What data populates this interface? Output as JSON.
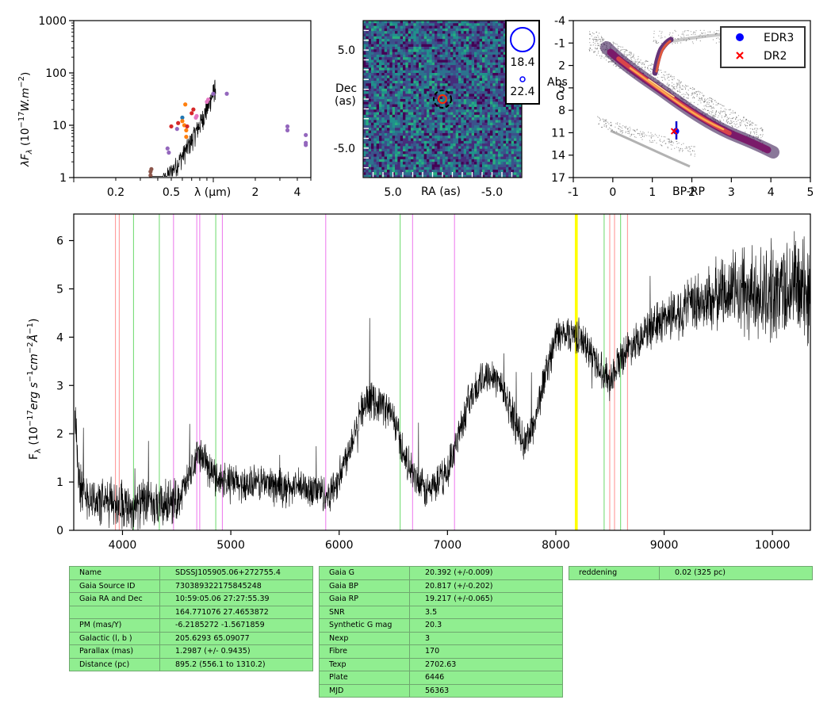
{
  "panels": {
    "sed": {
      "ylabel": "λF",
      "ylabel_sub": "λ",
      "ylabel_units": " (10",
      "ylabel_units_exp": "−17",
      "ylabel_units_rest": "W.m",
      "ylabel_units_exp2": "−2",
      "ylabel_close": ")",
      "xlabel": "λ (μm)",
      "yticks": [
        {
          "v": 1,
          "l": "1"
        },
        {
          "v": 10,
          "l": "10"
        },
        {
          "v": 100,
          "l": "100"
        },
        {
          "v": 1000,
          "l": "1000"
        }
      ],
      "xticks": [
        {
          "v": 0.2,
          "l": "0.2"
        },
        {
          "v": 0.5,
          "l": "0.5"
        },
        {
          "v": 2,
          "l": "2"
        },
        {
          "v": 4,
          "l": "4"
        }
      ]
    },
    "image": {
      "xlabel": "RA (as)",
      "ylabel": "Dec",
      "ylabel2": "(as)",
      "xticks": [
        {
          "v": 5,
          "l": "5.0"
        },
        {
          "v": -5,
          "l": "-5.0"
        }
      ],
      "yticks": [
        {
          "v": 5,
          "l": "5.0"
        },
        {
          "v": -5,
          "l": "-5.0"
        }
      ],
      "legend_mags": [
        "18.4",
        "22.4"
      ]
    },
    "cmd": {
      "xlabel": "BP-RP",
      "ylabel": [
        "Abs",
        "G"
      ],
      "xticks": [
        "-1",
        "0",
        "1",
        "2",
        "3",
        "4",
        "5"
      ],
      "yticks": [
        "-4",
        "-1",
        "2",
        "5",
        "8",
        "11",
        "14",
        "17"
      ],
      "legend": [
        {
          "label": "EDR3",
          "marker": "circle",
          "color": "#0000ff"
        },
        {
          "label": "DR2",
          "marker": "x",
          "color": "#ff0000"
        }
      ]
    },
    "spectrum": {
      "ylabel": "F",
      "ylabel_sub": "λ",
      "ylabel_units": " (10",
      "ylabel_units_exp": "−17",
      "ylabel_units_rest": "erg s",
      "ylabel_units_exp2": "−1",
      "ylabel_units_rest2": "cm",
      "ylabel_units_exp3": "−2",
      "ylabel_units_rest3": "Å",
      "ylabel_units_exp4": "−1",
      "ylabel_close": ")",
      "xticks": [
        "4000",
        "5000",
        "6000",
        "7000",
        "8000",
        "9000",
        "10000"
      ],
      "yticks": [
        "0",
        "1",
        "2",
        "3",
        "4",
        "5",
        "6"
      ]
    }
  },
  "chart_data": [
    {
      "type": "scatter",
      "xscale": "log",
      "yscale": "log",
      "xlim": [
        0.1,
        5
      ],
      "ylim": [
        1,
        1000
      ],
      "xlabel": "λ (μm)",
      "points": [
        {
          "x": 0.355,
          "y": 1.3,
          "color": "#8c564b"
        },
        {
          "x": 0.355,
          "y": 1.1,
          "color": "#8c564b"
        },
        {
          "x": 0.36,
          "y": 1.45,
          "color": "#8c564b"
        },
        {
          "x": 0.47,
          "y": 3.6,
          "color": "#9467bd"
        },
        {
          "x": 0.48,
          "y": 3.0,
          "color": "#9467bd"
        },
        {
          "x": 0.5,
          "y": 9.5,
          "color": "#d62728"
        },
        {
          "x": 0.55,
          "y": 8.5,
          "color": "#9467bd"
        },
        {
          "x": 0.56,
          "y": 11,
          "color": "#d62728"
        },
        {
          "x": 0.6,
          "y": 14,
          "color": "#1f77b4"
        },
        {
          "x": 0.6,
          "y": 12,
          "color": "#ff7f0e"
        },
        {
          "x": 0.62,
          "y": 10,
          "color": "#ff7f0e"
        },
        {
          "x": 0.63,
          "y": 25,
          "color": "#ff7f0e"
        },
        {
          "x": 0.64,
          "y": 8,
          "color": "#ff7f0e"
        },
        {
          "x": 0.64,
          "y": 6,
          "color": "#ff7f0e"
        },
        {
          "x": 0.65,
          "y": 9.5,
          "color": "#d62728"
        },
        {
          "x": 0.7,
          "y": 17,
          "color": "#d62728"
        },
        {
          "x": 0.72,
          "y": 20,
          "color": "#d62728"
        },
        {
          "x": 0.75,
          "y": 14,
          "color": "#e377c2"
        },
        {
          "x": 0.76,
          "y": 15,
          "color": "#e377c2"
        },
        {
          "x": 0.9,
          "y": 28,
          "color": "#e377c2"
        },
        {
          "x": 0.92,
          "y": 31,
          "color": "#e377c2"
        },
        {
          "x": 1.0,
          "y": 40,
          "color": "#9467bd"
        },
        {
          "x": 1.25,
          "y": 40,
          "color": "#9467bd"
        },
        {
          "x": 3.4,
          "y": 9.5,
          "color": "#9467bd"
        },
        {
          "x": 3.4,
          "y": 8,
          "color": "#9467bd"
        },
        {
          "x": 4.6,
          "y": 6.5,
          "color": "#9467bd"
        },
        {
          "x": 4.6,
          "y": 4.6,
          "color": "#9467bd"
        },
        {
          "x": 4.6,
          "y": 4.2,
          "color": "#9467bd"
        }
      ]
    },
    {
      "type": "heatmap",
      "xlabel": "RA (as)",
      "ylabel": "Dec (as)",
      "xlim": [
        8,
        -8
      ],
      "ylim": [
        -8,
        8
      ],
      "markers": [
        {
          "x": 0,
          "y": 0,
          "type": "dashed-circle",
          "color": "#000000"
        },
        {
          "x": 0,
          "y": 0,
          "type": "circle",
          "color": "#ff0000"
        }
      ]
    },
    {
      "type": "scatter",
      "xlabel": "BP-RP",
      "ylabel": "Abs G",
      "xlim": [
        -1,
        5
      ],
      "ylim": [
        17,
        -4
      ],
      "series": [
        {
          "name": "EDR3",
          "points": [
            {
              "x": 1.6,
              "y": 10.8
            }
          ],
          "color": "#0000ff"
        },
        {
          "name": "DR2",
          "points": [
            {
              "x": 1.55,
              "y": 10.8
            }
          ],
          "color": "#ff0000"
        }
      ]
    },
    {
      "type": "line",
      "xlim": [
        3550,
        10350
      ],
      "ylim": [
        0,
        6.55
      ],
      "anchors": [
        [
          3560,
          2.5
        ],
        [
          3600,
          0.9
        ],
        [
          3700,
          0.7
        ],
        [
          3800,
          0.55
        ],
        [
          3900,
          0.6
        ],
        [
          4000,
          0.55
        ],
        [
          4100,
          0.45
        ],
        [
          4200,
          0.6
        ],
        [
          4300,
          0.45
        ],
        [
          4400,
          0.55
        ],
        [
          4500,
          0.6
        ],
        [
          4600,
          1.0
        ],
        [
          4700,
          1.6
        ],
        [
          4750,
          1.5
        ],
        [
          4800,
          1.25
        ],
        [
          4900,
          1.05
        ],
        [
          5000,
          1.0
        ],
        [
          5100,
          0.95
        ],
        [
          5200,
          0.95
        ],
        [
          5300,
          1.0
        ],
        [
          5400,
          0.95
        ],
        [
          5500,
          0.85
        ],
        [
          5600,
          0.9
        ],
        [
          5700,
          0.85
        ],
        [
          5800,
          0.85
        ],
        [
          5900,
          0.7
        ],
        [
          6000,
          1.1
        ],
        [
          6100,
          1.75
        ],
        [
          6200,
          2.5
        ],
        [
          6300,
          2.7
        ],
        [
          6400,
          2.6
        ],
        [
          6500,
          2.35
        ],
        [
          6600,
          1.55
        ],
        [
          6700,
          1.05
        ],
        [
          6800,
          0.8
        ],
        [
          6900,
          0.95
        ],
        [
          7000,
          1.2
        ],
        [
          7100,
          2.0
        ],
        [
          7200,
          2.7
        ],
        [
          7300,
          3.05
        ],
        [
          7400,
          3.3
        ],
        [
          7500,
          3.0
        ],
        [
          7600,
          2.4
        ],
        [
          7700,
          1.75
        ],
        [
          7800,
          2.2
        ],
        [
          7900,
          3.2
        ],
        [
          8000,
          4.0
        ],
        [
          8100,
          4.1
        ],
        [
          8200,
          4.05
        ],
        [
          8300,
          3.75
        ],
        [
          8400,
          3.4
        ],
        [
          8500,
          3.1
        ],
        [
          8600,
          3.6
        ],
        [
          8700,
          3.85
        ],
        [
          8800,
          4.05
        ],
        [
          8900,
          4.2
        ],
        [
          9000,
          4.4
        ],
        [
          9200,
          4.6
        ],
        [
          9400,
          4.75
        ],
        [
          9600,
          5.0
        ],
        [
          9800,
          4.85
        ],
        [
          10000,
          4.9
        ],
        [
          10200,
          5.1
        ],
        [
          10350,
          4.8
        ]
      ],
      "lines": [
        {
          "x": 3935,
          "color": "#ff9999"
        },
        {
          "x": 3970,
          "color": "#ff9999"
        },
        {
          "x": 4102,
          "color": "#77dd77"
        },
        {
          "x": 4340,
          "color": "#77dd77"
        },
        {
          "x": 4471,
          "color": "#ee82ee"
        },
        {
          "x": 4686,
          "color": "#ee82ee"
        },
        {
          "x": 4713,
          "color": "#ee82ee"
        },
        {
          "x": 4861,
          "color": "#77dd77"
        },
        {
          "x": 4922,
          "color": "#ee82ee"
        },
        {
          "x": 5876,
          "color": "#ee82ee"
        },
        {
          "x": 6563,
          "color": "#77dd77"
        },
        {
          "x": 6678,
          "color": "#ee82ee"
        },
        {
          "x": 7065,
          "color": "#ee82ee"
        },
        {
          "x": 8183,
          "color": "#ffff00"
        },
        {
          "x": 8195,
          "color": "#ffff00"
        },
        {
          "x": 8446,
          "color": "#77dd77"
        },
        {
          "x": 8498,
          "color": "#ff9999"
        },
        {
          "x": 8542,
          "color": "#ff9999"
        },
        {
          "x": 8598,
          "color": "#77dd77"
        },
        {
          "x": 8662,
          "color": "#ff9999"
        }
      ]
    }
  ],
  "tables": {
    "left": [
      [
        "Name",
        "SDSSJ105905.06+272755.4"
      ],
      [
        "Gaia Source ID",
        "730389322175845248"
      ],
      [
        "Gaia RA and Dec",
        "10:59:05.06    27:27:55.39"
      ],
      [
        "",
        "164.771076    27.4653872"
      ],
      [
        "PM (mas/Y)",
        "-6.2185272    -1.5671859"
      ],
      [
        "Galactic (l, b )",
        "205.6293    65.09077"
      ],
      [
        "Parallax (mas)",
        "1.2987 (+/- 0.9435)"
      ],
      [
        "Distance (pc)",
        "895.2 (556.1 to 1310.2)"
      ]
    ],
    "middle": [
      [
        "Gaia G",
        "20.392 (+/-0.009)"
      ],
      [
        "Gaia BP",
        "20.817 (+/-0.202)"
      ],
      [
        "Gaia RP",
        "19.217 (+/-0.065)"
      ],
      [
        "SNR",
        "3.5"
      ],
      [
        "Synthetic G mag",
        "20.3"
      ],
      [
        "Nexp",
        "3"
      ],
      [
        "Fibre",
        "170"
      ],
      [
        "Texp",
        "2702.63"
      ],
      [
        "Plate",
        "6446"
      ],
      [
        "MJD",
        "56363"
      ]
    ],
    "right": [
      [
        "reddening",
        "0.02 (325 pc)"
      ]
    ]
  }
}
